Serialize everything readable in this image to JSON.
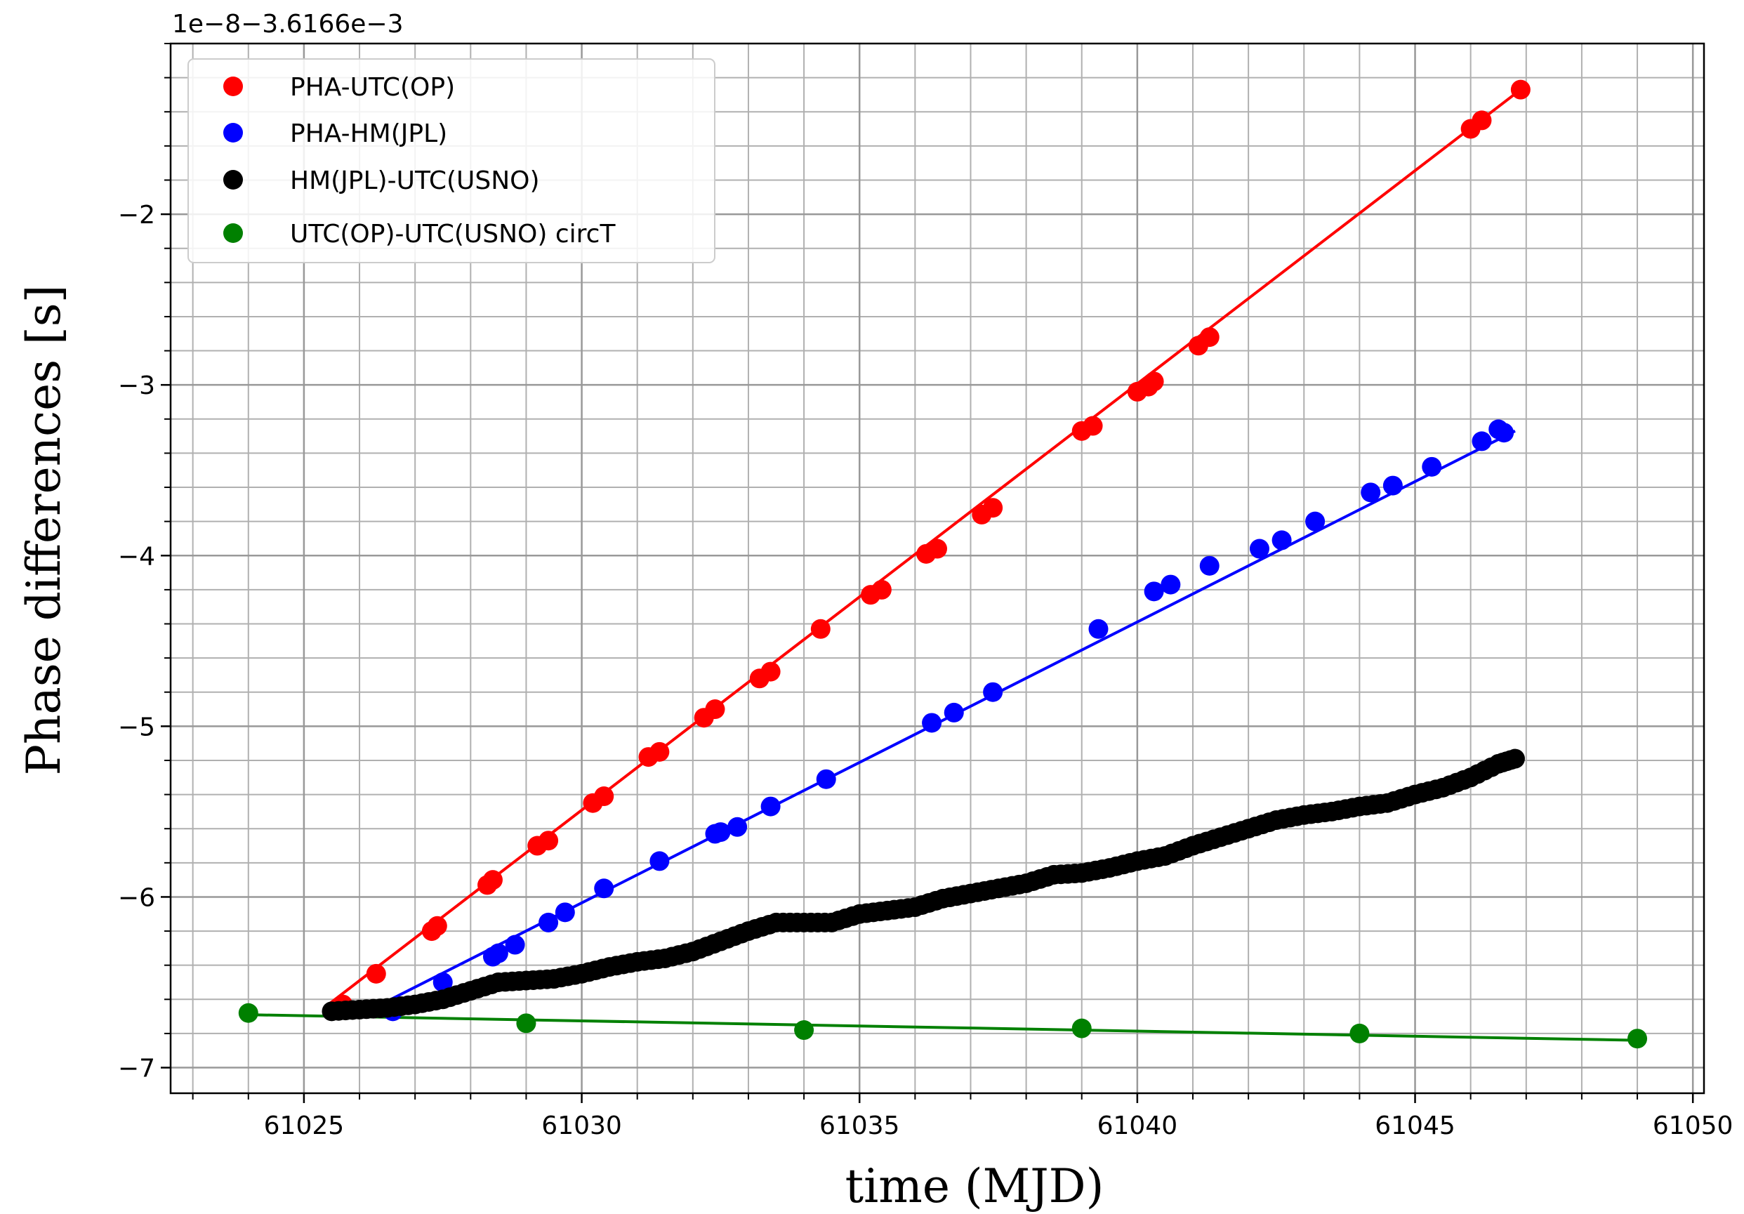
{
  "chart_data": {
    "type": "scatter",
    "xlabel": "time (MJD)",
    "ylabel": "Phase differences   [s]",
    "offset_text": "1e−8−3.6166e−3",
    "xlim": [
      61022.6,
      61050.2
    ],
    "ylim": [
      -7.15,
      -1.0
    ],
    "x_ticks": [
      61025,
      61030,
      61035,
      61040,
      61045,
      61050
    ],
    "y_ticks": [
      -7,
      -6,
      -5,
      -4,
      -3,
      -2
    ],
    "x_tick_labels": [
      "61025",
      "61030",
      "61035",
      "61040",
      "61045",
      "61050"
    ],
    "y_tick_labels": [
      "−7",
      "−6",
      "−5",
      "−4",
      "−3",
      "−2"
    ],
    "grid": true,
    "minor_grid": true,
    "legend_position": "upper-left",
    "series": [
      {
        "name": "PHA-UTC(OP)",
        "color": "#ff0000",
        "marker": "circle",
        "x": [
          61025.7,
          61026.3,
          61027.3,
          61027.4,
          61028.3,
          61028.4,
          61029.2,
          61029.4,
          61030.2,
          61030.4,
          61031.2,
          61031.4,
          61032.2,
          61032.4,
          61033.2,
          61033.4,
          61034.3,
          61035.2,
          61035.4,
          61036.2,
          61036.4,
          61037.2,
          61037.4,
          61039.0,
          61039.2,
          61040.0,
          61040.2,
          61040.3,
          61041.1,
          61041.3,
          61046.0,
          61046.2,
          61046.9
        ],
        "y": [
          -6.63,
          -6.45,
          -6.2,
          -6.17,
          -5.93,
          -5.9,
          -5.7,
          -5.67,
          -5.45,
          -5.41,
          -5.18,
          -5.15,
          -4.95,
          -4.9,
          -4.72,
          -4.68,
          -4.43,
          -4.23,
          -4.2,
          -3.99,
          -3.96,
          -3.76,
          -3.72,
          -3.27,
          -3.24,
          -3.04,
          -3.01,
          -2.98,
          -2.77,
          -2.72,
          -1.5,
          -1.45,
          -1.27
        ],
        "fit": {
          "x": [
            61025.4,
            61046.9
          ],
          "y": [
            -6.64,
            -1.27
          ]
        }
      },
      {
        "name": "PHA-HM(JPL)",
        "color": "#0000ff",
        "marker": "circle",
        "x": [
          61026.6,
          61027.5,
          61028.4,
          61028.5,
          61028.8,
          61029.4,
          61029.7,
          61030.4,
          61031.4,
          61032.4,
          61032.5,
          61032.8,
          61033.4,
          61034.4,
          61036.3,
          61036.7,
          61037.4,
          61039.3,
          61040.3,
          61040.6,
          61041.3,
          61042.2,
          61042.6,
          61043.2,
          61044.2,
          61044.6,
          61045.3,
          61046.2,
          61046.5,
          61046.6
        ],
        "y": [
          -6.67,
          -6.5,
          -6.35,
          -6.33,
          -6.28,
          -6.15,
          -6.09,
          -5.95,
          -5.79,
          -5.63,
          -5.62,
          -5.59,
          -5.47,
          -5.31,
          -4.98,
          -4.92,
          -4.8,
          -4.43,
          -4.21,
          -4.17,
          -4.06,
          -3.96,
          -3.91,
          -3.8,
          -3.63,
          -3.59,
          -3.48,
          -3.33,
          -3.26,
          -3.28
        ],
        "fit": {
          "x": [
            61026.2,
            61046.8
          ],
          "y": [
            -6.66,
            -3.27
          ]
        }
      },
      {
        "name": "HM(JPL)-UTC(USNO)",
        "color": "#000000",
        "marker": "circle",
        "x": [
          61025.5,
          61026.0,
          61026.5,
          61027.0,
          61027.5,
          61028.0,
          61028.5,
          61029.0,
          61029.5,
          61030.0,
          61030.5,
          61031.0,
          61031.5,
          61032.0,
          61032.5,
          61033.0,
          61033.5,
          61034.0,
          61034.5,
          61035.0,
          61035.5,
          61036.0,
          61036.5,
          61037.0,
          61037.5,
          61038.0,
          61038.5,
          61039.0,
          61039.5,
          61040.0,
          61040.5,
          61041.0,
          61041.5,
          61042.0,
          61042.5,
          61043.0,
          61043.5,
          61044.0,
          61044.5,
          61045.0,
          61045.5,
          61046.0,
          61046.5,
          61046.8
        ],
        "y": [
          -6.67,
          -6.66,
          -6.65,
          -6.63,
          -6.6,
          -6.55,
          -6.5,
          -6.49,
          -6.48,
          -6.45,
          -6.41,
          -6.38,
          -6.36,
          -6.32,
          -6.26,
          -6.2,
          -6.15,
          -6.15,
          -6.15,
          -6.1,
          -6.08,
          -6.06,
          -6.01,
          -5.98,
          -5.95,
          -5.92,
          -5.87,
          -5.86,
          -5.83,
          -5.79,
          -5.76,
          -5.7,
          -5.65,
          -5.6,
          -5.55,
          -5.52,
          -5.5,
          -5.47,
          -5.45,
          -5.4,
          -5.36,
          -5.3,
          -5.22,
          -5.19
        ]
      },
      {
        "name": "UTC(OP)-UTC(USNO) circT",
        "color": "#008000",
        "marker": "circle",
        "x": [
          61024.0,
          61029.0,
          61034.0,
          61039.0,
          61044.0,
          61049.0
        ],
        "y": [
          -6.68,
          -6.74,
          -6.78,
          -6.77,
          -6.8,
          -6.83
        ],
        "fit": {
          "x": [
            61024.0,
            61049.0
          ],
          "y": [
            -6.69,
            -6.84
          ]
        }
      }
    ]
  }
}
